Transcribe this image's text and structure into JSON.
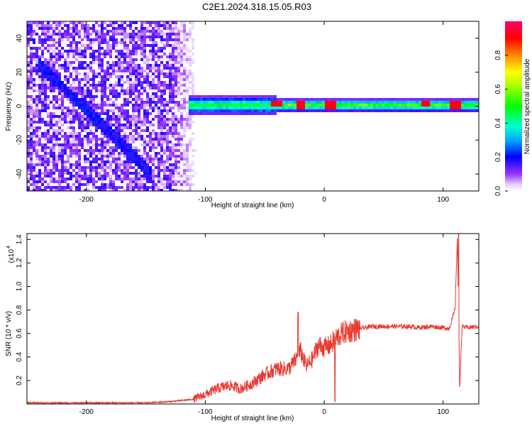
{
  "title": "C2E1.2024.318.15.05.R03",
  "chart_data": [
    {
      "type": "heatmap",
      "xlabel": "Height of straight line (km)",
      "ylabel": "Frequency (Hz)",
      "xlim": [
        -250,
        130
      ],
      "ylim": [
        -50,
        50
      ],
      "xticks": [
        -200,
        -100,
        0,
        100
      ],
      "xtick_labels": [
        "-200",
        "-100",
        "0",
        "100"
      ],
      "yticks": [
        -40,
        -20,
        0,
        20,
        40
      ],
      "ytick_labels": [
        "-40",
        "-20",
        "0",
        "20",
        "40"
      ],
      "colorbar": {
        "label": "Normalized spectral amplitude",
        "range": [
          0,
          1
        ],
        "ticks": [
          0.0,
          0.2,
          0.4,
          0.6,
          0.8
        ],
        "tick_labels": [
          "0.0",
          "0.2",
          "0.4",
          "0.6",
          "0.8"
        ]
      },
      "features": {
        "noisy_region_x": [
          -250,
          -105
        ],
        "diagonal_streak": {
          "x": [
            -240,
            -145
          ],
          "y": [
            25,
            -40
          ]
        },
        "main_band": {
          "x": [
            -115,
            130
          ],
          "center_hz": 0.5
        },
        "peak_points": [
          [
            -40,
            1
          ],
          [
            -20,
            0.5
          ],
          [
            5,
            0.5
          ],
          [
            85,
            1.5
          ],
          [
            110,
            0.5
          ]
        ]
      }
    },
    {
      "type": "line",
      "xlabel": "Height of straight line (km)",
      "ylabel": "SNR (10 * v/v)",
      "y_multiplier": "(x10",
      "y_multiplier_exp": "4",
      "xlim": [
        -250,
        130
      ],
      "ylim": [
        0,
        1.45
      ],
      "xticks": [
        -200,
        -100,
        0,
        100
      ],
      "xtick_labels": [
        "-200",
        "-100",
        "0",
        "100"
      ],
      "yticks": [
        0.2,
        0.4,
        0.6,
        0.8,
        1.0,
        1.2,
        1.4
      ],
      "ytick_labels": [
        "0.2",
        "0.4",
        "0.6",
        "0.8",
        "1.0",
        "1.2",
        "1.4"
      ],
      "series": [
        {
          "color": "#e8382e",
          "x": [
            -250,
            -200,
            -150,
            -130,
            -110,
            -100,
            -90,
            -80,
            -70,
            -60,
            -50,
            -40,
            -30,
            -25,
            -20,
            -15,
            -10,
            -5,
            0,
            5,
            10,
            15,
            20,
            30,
            40,
            50,
            60,
            70,
            80,
            90,
            100,
            105,
            110,
            112,
            114,
            116,
            120,
            130
          ],
          "values": [
            0.01,
            0.01,
            0.01,
            0.02,
            0.04,
            0.08,
            0.13,
            0.16,
            0.13,
            0.18,
            0.25,
            0.3,
            0.3,
            0.36,
            0.45,
            0.32,
            0.38,
            0.5,
            0.48,
            0.5,
            0.56,
            0.6,
            0.62,
            0.64,
            0.66,
            0.66,
            0.66,
            0.66,
            0.65,
            0.66,
            0.65,
            0.64,
            0.8,
            1.42,
            0.18,
            0.66,
            0.65,
            0.66
          ]
        }
      ],
      "spikes": [
        [
          -22,
          0.78
        ],
        [
          9,
          0.8
        ],
        [
          9,
          0.02
        ],
        [
          113,
          1.45
        ],
        [
          114,
          0.15
        ]
      ]
    }
  ]
}
